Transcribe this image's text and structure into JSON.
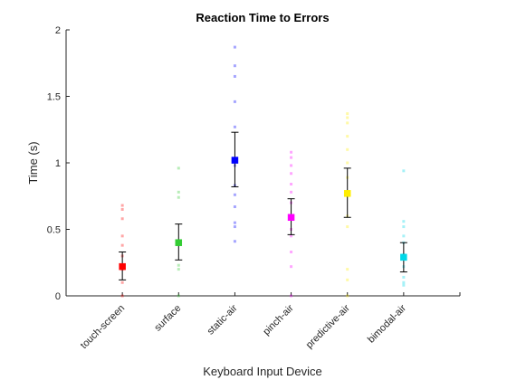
{
  "chart_data": {
    "type": "scatter",
    "title": "Reaction Time to Errors",
    "xlabel": "Keyboard Input Device",
    "ylabel": "Time (s)",
    "categories": [
      "touch-screen",
      "surface",
      "static-air",
      "pinch-air",
      "predictive-air",
      "bimodal-air"
    ],
    "ylim": [
      0,
      2
    ],
    "yticks": [
      0,
      0.5,
      1,
      1.5,
      2
    ],
    "ytick_labels": [
      "0",
      "0.5",
      "1",
      "1.5",
      "2"
    ],
    "grid": false,
    "series": [
      {
        "category": "touch-screen",
        "color": "#ff0000",
        "mean": 0.22,
        "err_low": 0.12,
        "err_high": 0.33,
        "points": [
          0.0,
          0.1,
          0.2,
          0.21,
          0.22,
          0.3,
          0.38,
          0.45,
          0.58,
          0.65,
          0.68
        ]
      },
      {
        "category": "surface",
        "color": "#33cc33",
        "mean": 0.4,
        "err_low": 0.27,
        "err_high": 0.54,
        "points": [
          0.0,
          0.2,
          0.23,
          0.4,
          0.74,
          0.78,
          0.96
        ]
      },
      {
        "category": "static-air",
        "color": "#0000ff",
        "mean": 1.02,
        "err_low": 0.82,
        "err_high": 1.23,
        "points": [
          0.41,
          0.52,
          0.55,
          0.67,
          0.76,
          0.83,
          0.98,
          1.27,
          1.46,
          1.65,
          1.73,
          1.87
        ]
      },
      {
        "category": "pinch-air",
        "color": "#ff00ff",
        "mean": 0.59,
        "err_low": 0.46,
        "err_high": 0.73,
        "points": [
          0.0,
          0.22,
          0.33,
          0.45,
          0.5,
          0.6,
          0.7,
          0.78,
          0.84,
          0.92,
          0.98,
          1.04,
          1.08
        ]
      },
      {
        "category": "predictive-air",
        "color": "#ffee00",
        "mean": 0.77,
        "err_low": 0.59,
        "err_high": 0.96,
        "points": [
          0.0,
          0.12,
          0.2,
          0.52,
          0.6,
          0.75,
          0.89,
          1.0,
          1.1,
          1.2,
          1.3,
          1.34,
          1.37
        ]
      },
      {
        "category": "bimodal-air",
        "color": "#00d8e8",
        "mean": 0.29,
        "err_low": 0.18,
        "err_high": 0.4,
        "points": [
          0.08,
          0.1,
          0.14,
          0.22,
          0.31,
          0.4,
          0.45,
          0.52,
          0.56,
          0.94
        ]
      }
    ]
  }
}
